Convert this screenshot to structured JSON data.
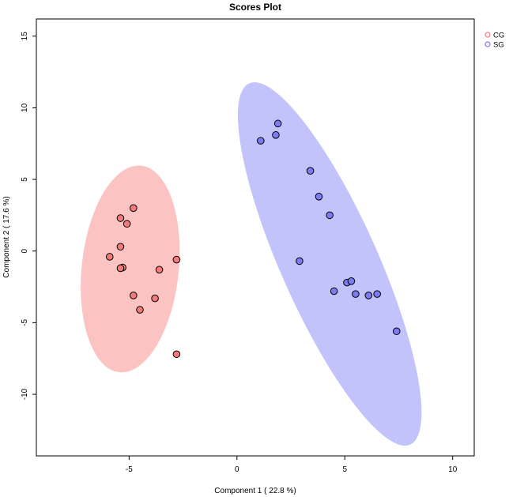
{
  "chart_data": {
    "type": "scatter",
    "title": "Scores Plot",
    "xlabel": "Component 1 ( 22.8 %)",
    "ylabel": "Component 2 ( 17.6 %)",
    "xlim": [
      -9.3,
      11.0
    ],
    "ylim": [
      -14.3,
      16.2
    ],
    "xticks": [
      -5,
      0,
      5,
      10
    ],
    "xtick_labels": [
      "-5",
      "0",
      "5",
      "10"
    ],
    "yticks": [
      -10,
      -5,
      0,
      5,
      10,
      15
    ],
    "ytick_labels": [
      "-10",
      "-5",
      "0",
      "5",
      "10",
      "15"
    ],
    "grid": false,
    "legend_position": "top-right",
    "series": [
      {
        "name": "CG",
        "marker_color": "#f47a7a",
        "ellipse_color": "#fbb9b9",
        "ellipse": {
          "center": [
            -4.95,
            -1.25
          ],
          "semi_axes": [
            2.25,
            7.25
          ],
          "angle_deg": -6
        },
        "points": [
          {
            "x": -5.4,
            "y": 2.3
          },
          {
            "x": -4.8,
            "y": 3.0
          },
          {
            "x": -5.1,
            "y": 1.9
          },
          {
            "x": -5.4,
            "y": 0.3
          },
          {
            "x": -5.9,
            "y": -0.4
          },
          {
            "x": -5.3,
            "y": -1.15
          },
          {
            "x": -5.4,
            "y": -1.2
          },
          {
            "x": -2.8,
            "y": -0.6
          },
          {
            "x": -3.6,
            "y": -1.3
          },
          {
            "x": -4.8,
            "y": -3.1
          },
          {
            "x": -3.8,
            "y": -3.3
          },
          {
            "x": -4.5,
            "y": -4.1
          },
          {
            "x": -2.8,
            "y": -7.2
          }
        ]
      },
      {
        "name": "SG",
        "marker_color": "#7b7bf4",
        "ellipse_color": "#b9b9fb",
        "ellipse": {
          "center": [
            4.3,
            -0.9
          ],
          "semi_axes": [
            2.25,
            13.8
          ],
          "angle_deg": 24
        },
        "points": [
          {
            "x": 1.1,
            "y": 7.7
          },
          {
            "x": 1.8,
            "y": 8.1
          },
          {
            "x": 1.9,
            "y": 8.9
          },
          {
            "x": 3.4,
            "y": 5.6
          },
          {
            "x": 3.8,
            "y": 3.8
          },
          {
            "x": 4.3,
            "y": 2.5
          },
          {
            "x": 2.9,
            "y": -0.7
          },
          {
            "x": 5.1,
            "y": -2.2
          },
          {
            "x": 5.3,
            "y": -2.1
          },
          {
            "x": 4.5,
            "y": -2.8
          },
          {
            "x": 5.5,
            "y": -3.0
          },
          {
            "x": 6.1,
            "y": -3.1
          },
          {
            "x": 6.5,
            "y": -3.0
          },
          {
            "x": 7.4,
            "y": -5.6
          }
        ]
      }
    ]
  }
}
